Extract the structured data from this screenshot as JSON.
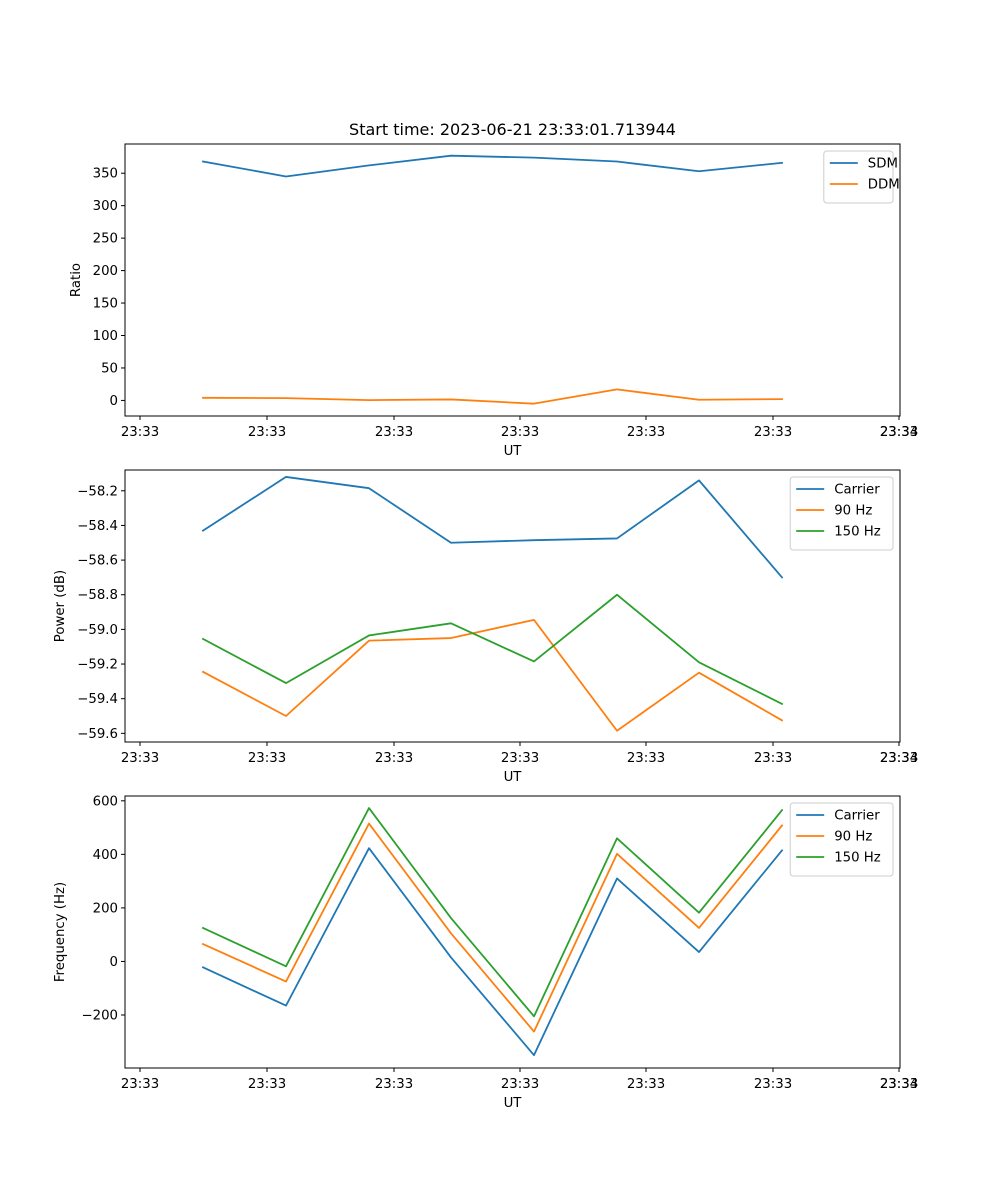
{
  "colors": {
    "c0": "#1f77b4",
    "c1": "#ff7f0e",
    "c2": "#2ca02c"
  },
  "chart_data": [
    {
      "type": "line",
      "title": "Start time: 2023-06-21 23:33:01.713944",
      "xlabel": "UT",
      "ylabel": "Ratio",
      "x_tick_labels": [
        "23:33",
        "23:33",
        "23:33",
        "23:33",
        "23:33",
        "23:33",
        "23:33"
      ],
      "x_tick_last_label": "23:34",
      "ylim": [
        -24,
        395
      ],
      "yticks": [
        0,
        50,
        100,
        150,
        200,
        250,
        300,
        350
      ],
      "ytick_labels": [
        "0",
        "50",
        "100",
        "150",
        "200",
        "250",
        "300",
        "350"
      ],
      "legend_position": "upper-right",
      "series": [
        {
          "name": "SDM",
          "color": "#1f77b4",
          "values": [
            368,
            345,
            362,
            377,
            374,
            368,
            353,
            366
          ]
        },
        {
          "name": "DDM",
          "color": "#ff7f0e",
          "values": [
            4,
            3.5,
            0.5,
            1.5,
            -5,
            17,
            1,
            2
          ]
        }
      ]
    },
    {
      "type": "line",
      "title": "",
      "xlabel": "UT",
      "ylabel": "Power (dB)",
      "x_tick_labels": [
        "23:33",
        "23:33",
        "23:33",
        "23:33",
        "23:33",
        "23:33",
        "23:33"
      ],
      "x_tick_last_label": "23:34",
      "ylim": [
        -59.65,
        -58.08
      ],
      "yticks": [
        -59.6,
        -59.4,
        -59.2,
        -59.0,
        -58.8,
        -58.6,
        -58.4,
        -58.2
      ],
      "ytick_labels": [
        "−59.6",
        "−59.4",
        "−59.2",
        "−59.0",
        "−58.8",
        "−58.6",
        "−58.4",
        "−58.2"
      ],
      "legend_position": "upper-right",
      "series": [
        {
          "name": "Carrier",
          "color": "#1f77b4",
          "values": [
            -58.43,
            -58.12,
            -58.185,
            -58.5,
            -58.485,
            -58.475,
            -58.14,
            -58.7
          ]
        },
        {
          "name": "90 Hz",
          "color": "#ff7f0e",
          "values": [
            -59.245,
            -59.5,
            -59.065,
            -59.05,
            -58.945,
            -59.585,
            -59.25,
            -59.525
          ]
        },
        {
          "name": "150 Hz",
          "color": "#2ca02c",
          "values": [
            -59.055,
            -59.31,
            -59.035,
            -58.965,
            -59.185,
            -58.8,
            -59.19,
            -59.43
          ]
        }
      ]
    },
    {
      "type": "line",
      "title": "",
      "xlabel": "UT",
      "ylabel": "Frequency (Hz)",
      "x_tick_labels": [
        "23:33",
        "23:33",
        "23:33",
        "23:33",
        "23:33",
        "23:33",
        "23:33"
      ],
      "x_tick_last_label": "23:34",
      "ylim": [
        -398,
        618
      ],
      "yticks": [
        -200,
        0,
        200,
        400,
        600
      ],
      "ytick_labels": [
        "−200",
        "0",
        "200",
        "400",
        "600"
      ],
      "legend_position": "upper-right",
      "series": [
        {
          "name": "Carrier",
          "color": "#1f77b4",
          "values": [
            -22,
            -165,
            423,
            15,
            -350,
            310,
            35,
            415
          ]
        },
        {
          "name": "90 Hz",
          "color": "#ff7f0e",
          "values": [
            65,
            -75,
            515,
            105,
            -262,
            402,
            125,
            508
          ]
        },
        {
          "name": "150 Hz",
          "color": "#2ca02c",
          "values": [
            125,
            -18,
            573,
            162,
            -205,
            460,
            182,
            565
          ]
        }
      ]
    }
  ]
}
